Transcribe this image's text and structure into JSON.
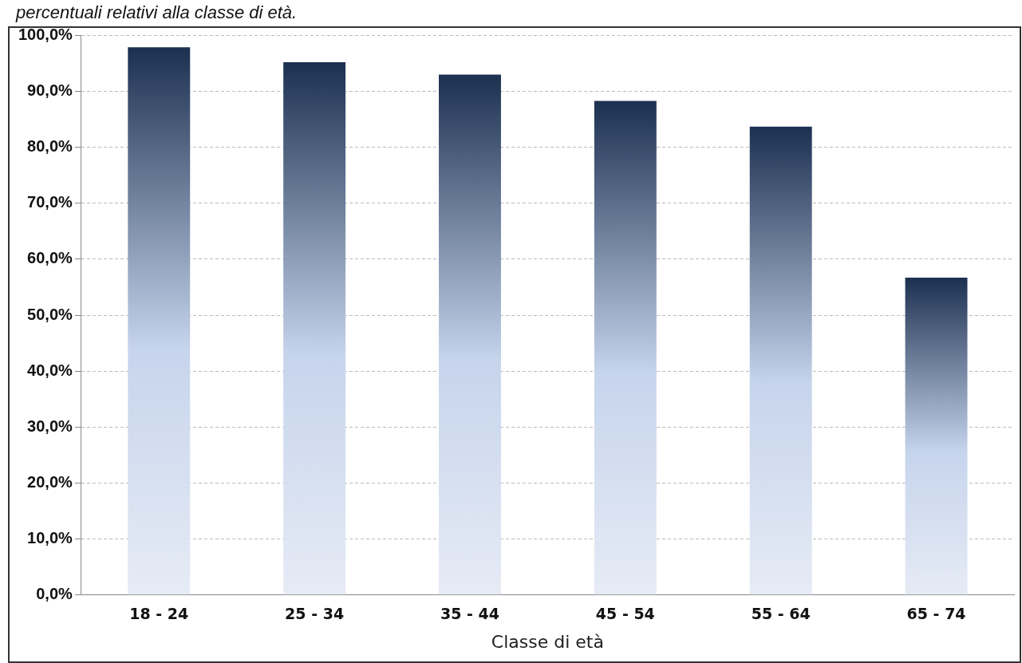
{
  "chart_data": {
    "type": "bar",
    "title": "percentuali relativi alla classe di età.",
    "xlabel": "Classe di età",
    "categories": [
      "18 - 24",
      "25 - 34",
      "35 - 44",
      "45 - 54",
      "55 - 64",
      "65 - 74"
    ],
    "values": [
      97.9,
      95.2,
      93.0,
      88.3,
      83.7,
      56.7
    ],
    "color": "#1c3050",
    "ylim": [
      0,
      100
    ],
    "yticks": [
      {
        "value": 0,
        "label": "0,0%"
      },
      {
        "value": 10,
        "label": "10,0%"
      },
      {
        "value": 20,
        "label": "20,0%"
      },
      {
        "value": 30,
        "label": "30,0%"
      },
      {
        "value": 40,
        "label": "40,0%"
      },
      {
        "value": 50,
        "label": "50,0%"
      },
      {
        "value": 60,
        "label": "60,0%"
      },
      {
        "value": 70,
        "label": "70,0%"
      },
      {
        "value": 80,
        "label": "80,0%"
      },
      {
        "value": 90,
        "label": "90,0%"
      },
      {
        "value": 100,
        "label": "100,0%"
      }
    ],
    "grid": "y",
    "legend": false
  }
}
